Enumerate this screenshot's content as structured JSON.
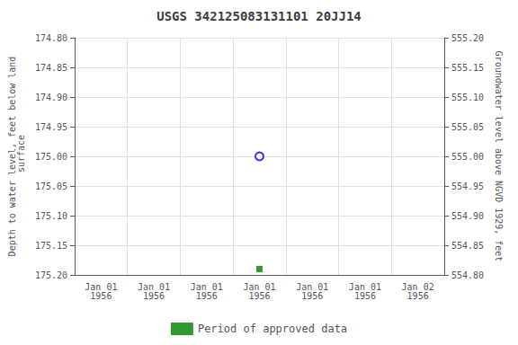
{
  "chart_data": {
    "type": "scatter",
    "title": "USGS 342125083131101 20JJ14",
    "categories": [
      "Jan 01\n1956",
      "Jan 01\n1956",
      "Jan 01\n1956",
      "Jan 01\n1956",
      "Jan 01\n1956",
      "Jan 01\n1956",
      "Jan 02\n1956"
    ],
    "y_label": "Depth to water level, feet below land\n surface",
    "y2_label": "Groundwater level above NGVD 1929, feet",
    "ylim": [
      175.2,
      174.8
    ],
    "yticks": [
      {
        "value": 174.8,
        "label": "174.80"
      },
      {
        "value": 174.85,
        "label": "174.85"
      },
      {
        "value": 174.9,
        "label": "174.90"
      },
      {
        "value": 174.95,
        "label": "174.95"
      },
      {
        "value": 175.0,
        "label": "175.00"
      },
      {
        "value": 175.05,
        "label": "175.05"
      },
      {
        "value": 175.1,
        "label": "175.10"
      },
      {
        "value": 175.15,
        "label": "175.15"
      },
      {
        "value": 175.2,
        "label": "175.20"
      }
    ],
    "y2lim": [
      554.8,
      555.2
    ],
    "y2ticks": [
      {
        "value": 554.8,
        "label": "554.80"
      },
      {
        "value": 554.85,
        "label": "554.85"
      },
      {
        "value": 554.9,
        "label": "554.90"
      },
      {
        "value": 554.95,
        "label": "554.95"
      },
      {
        "value": 555.0,
        "label": "555.00"
      },
      {
        "value": 555.05,
        "label": "555.05"
      },
      {
        "value": 555.1,
        "label": "555.10"
      },
      {
        "value": 555.15,
        "label": "555.15"
      },
      {
        "value": 555.2,
        "label": "555.20"
      }
    ],
    "series": [
      {
        "color": "#0000ff",
        "marker": "circle",
        "values": [
          null,
          null,
          null,
          175.0,
          null,
          null,
          null
        ]
      },
      {
        "name": "Period of approved data",
        "color": "#008000",
        "marker": "square",
        "values": [
          null,
          null,
          null,
          175.19,
          null,
          null,
          null
        ]
      }
    ],
    "grid": true,
    "legend": "bottom"
  }
}
